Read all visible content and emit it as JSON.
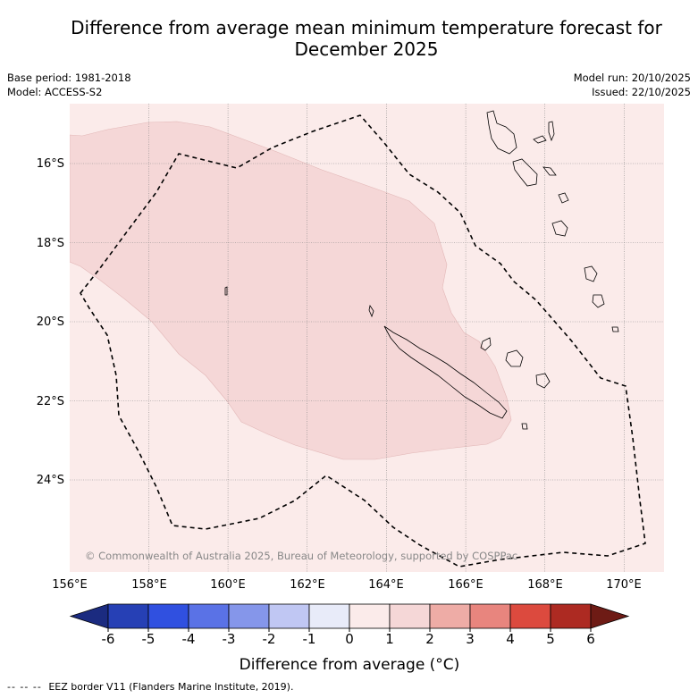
{
  "title": "Difference from average mean minimum temperature forecast for December 2025",
  "title_line1": "Difference from average mean minimum temperature forecast for",
  "title_line2": "December 2025",
  "base_period": "Base period: 1981-2018",
  "model": "Model: ACCESS-S2",
  "model_run": "Model run: 20/10/2025",
  "issued": "Issued: 22/10/2025",
  "copyright": "© Commonwealth of Australia 2025, Bureau of Meteorology, supported by COSPPac",
  "colorbar_title": "Difference from average (°C)",
  "footer_dash": "-- -- --",
  "footer_text": "EEZ border V11 (Flanders Marine Institute, 2019).",
  "map": {
    "lat_labels": [
      "16°S",
      "18°S",
      "20°S",
      "22°S",
      "24°S"
    ],
    "lon_labels": [
      "156°E",
      "158°E",
      "160°E",
      "162°E",
      "164°E",
      "166°E",
      "168°E",
      "170°E"
    ],
    "regions": [
      "New Caledonia",
      "Vanuatu",
      "Loyalty Islands",
      "EEZ border"
    ]
  },
  "colorbar": {
    "ticks": [
      "-6",
      "-5",
      "-4",
      "-3",
      "-2",
      "-1",
      "0",
      "1",
      "2",
      "3",
      "4",
      "5",
      "6"
    ],
    "colors": [
      "#1b2b80",
      "#2640b5",
      "#3050e0",
      "#5a72e6",
      "#8596ea",
      "#c0c7f3",
      "#e8ebf9",
      "#fbebea",
      "#f5d7d7",
      "#eeaca6",
      "#e8857e",
      "#dc4a3e",
      "#ad2a22",
      "#6e1b15"
    ]
  },
  "chart_data": {
    "type": "map",
    "title": "Difference from average mean minimum temperature forecast for December 2025",
    "variable": "Difference from average (°C)",
    "lon_range": [
      156,
      171
    ],
    "lat_range": [
      -26.3,
      -14.5
    ],
    "field_categories": [
      {
        "range": "0 to 1",
        "color": "#fbebea",
        "extent": "background across map"
      },
      {
        "range": "1 to 2",
        "color": "#f5d7d7",
        "extent": "region from 156°E to ~167°E, ~15°S to ~23.5°S"
      }
    ],
    "colorbar_ticks": [
      -6,
      -5,
      -4,
      -3,
      -2,
      -1,
      0,
      1,
      2,
      3,
      4,
      5,
      6
    ]
  }
}
